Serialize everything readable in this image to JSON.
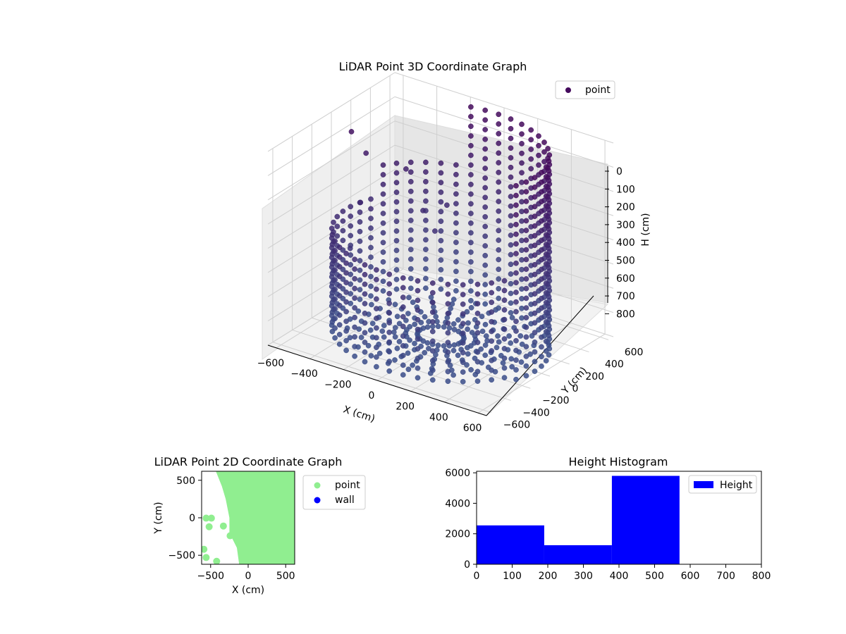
{
  "chart_data": [
    {
      "type": "scatter",
      "projection": "3d",
      "title": "LiDAR Point 3D Coordinate Graph",
      "xlabel": "X (cm)",
      "ylabel": "Y (cm)",
      "zlabel": "H (cm)",
      "xlim": [
        -650,
        650
      ],
      "ylim": [
        -650,
        650
      ],
      "zlim": [
        800,
        0
      ],
      "x_ticks": [
        "−600",
        "−400",
        "−200",
        "0",
        "200",
        "400",
        "600"
      ],
      "y_ticks": [
        "−600",
        "−400",
        "−200",
        "0",
        "200",
        "400",
        "600"
      ],
      "z_ticks": [
        "0",
        "100",
        "200",
        "300",
        "400",
        "500",
        "600",
        "700",
        "800"
      ],
      "legend": {
        "labels": [
          "point"
        ],
        "location": "upper right"
      },
      "colormap": "viridis (dark purple to blue by height)",
      "colors": {
        "low": "#3b4f8a",
        "high": "#440a5c"
      },
      "grid": true,
      "series": [
        {
          "name": "point",
          "shape": "cylindrical wall, roughly circular with radius about 550 cm, height 0 to 800 cm, sampled every ~10° of azimuth, plus a dense floor area and scattered outlier points on the left",
          "wall_points_cylindrical": [
            {
              "angle_deg": 0,
              "radius_cm": 560,
              "h_top": 0,
              "h_bottom": 800
            },
            {
              "angle_deg": 30,
              "radius_cm": 560,
              "h_top": 0,
              "h_bottom": 800
            },
            {
              "angle_deg": 60,
              "radius_cm": 560,
              "h_top": 0,
              "h_bottom": 800
            },
            {
              "angle_deg": 90,
              "radius_cm": 560,
              "h_top": 0,
              "h_bottom": 800
            },
            {
              "angle_deg": 120,
              "radius_cm": 560,
              "h_top": 100,
              "h_bottom": 800
            },
            {
              "angle_deg": 150,
              "radius_cm": 560,
              "h_top": 300,
              "h_bottom": 800
            },
            {
              "angle_deg": 180,
              "radius_cm": 560,
              "h_top": 380,
              "h_bottom": 800
            },
            {
              "angle_deg": 210,
              "radius_cm": 560,
              "h_top": 380,
              "h_bottom": 800
            },
            {
              "angle_deg": 240,
              "radius_cm": 560,
              "h_top": 380,
              "h_bottom": 800
            },
            {
              "angle_deg": 270,
              "radius_cm": 560,
              "h_top": 380,
              "h_bottom": 800
            },
            {
              "angle_deg": 300,
              "radius_cm": 560,
              "h_top": 380,
              "h_bottom": 800
            },
            {
              "angle_deg": 330,
              "radius_cm": 560,
              "h_top": 300,
              "h_bottom": 800
            }
          ],
          "outliers": [
            {
              "x": -600,
              "y": 120,
              "h": 100
            },
            {
              "x": -560,
              "y": 200,
              "h": 200
            },
            {
              "x": -480,
              "y": -100,
              "h": 500
            },
            {
              "x": -500,
              "y": 40,
              "h": 350
            },
            {
              "x": -380,
              "y": 300,
              "h": 250
            },
            {
              "x": -250,
              "y": 250,
              "h": 380
            },
            {
              "x": -160,
              "y": 340,
              "h": 360
            },
            {
              "x": -150,
              "y": 200,
              "h": 430
            }
          ]
        }
      ]
    },
    {
      "type": "scatter",
      "title": "LiDAR Point 2D Coordinate Graph",
      "xlabel": "X (cm)",
      "ylabel": "Y (cm)",
      "xlim": [
        -620,
        620
      ],
      "ylim": [
        -620,
        620
      ],
      "x_ticks": [
        "−500",
        "0",
        "500"
      ],
      "y_ticks": [
        "500",
        "0",
        "−500"
      ],
      "legend": {
        "labels": [
          "point",
          "wall"
        ],
        "location": "outside right"
      },
      "series": [
        {
          "name": "point",
          "color": "#90ee90",
          "region_boundary": [
            {
              "x": -430,
              "y": 620
            },
            {
              "x": 620,
              "y": 620
            },
            {
              "x": 620,
              "y": -620
            },
            {
              "x": -120,
              "y": -620
            },
            {
              "x": -150,
              "y": -400
            },
            {
              "x": -250,
              "y": -200
            },
            {
              "x": -250,
              "y": 0
            },
            {
              "x": -300,
              "y": 250
            },
            {
              "x": -350,
              "y": 420
            },
            {
              "x": -430,
              "y": 620
            }
          ],
          "isolated_points": [
            {
              "x": -560,
              "y": -5
            },
            {
              "x": -490,
              "y": -5
            },
            {
              "x": -520,
              "y": -120
            },
            {
              "x": -330,
              "y": -110
            },
            {
              "x": -240,
              "y": -240
            },
            {
              "x": -590,
              "y": -420
            },
            {
              "x": -560,
              "y": -530
            },
            {
              "x": -420,
              "y": -580
            }
          ]
        },
        {
          "name": "wall",
          "color": "#0000ff",
          "values": []
        }
      ]
    },
    {
      "type": "bar",
      "subtype": "histogram",
      "title": "Height Histogram",
      "xlabel": "",
      "ylabel": "",
      "xlim": [
        0,
        800
      ],
      "ylim": [
        0,
        6100
      ],
      "x_ticks": [
        "0",
        "100",
        "200",
        "300",
        "400",
        "500",
        "600",
        "700",
        "800"
      ],
      "y_ticks": [
        "0",
        "2000",
        "4000",
        "6000"
      ],
      "legend": {
        "labels": [
          "Height"
        ],
        "location": "upper right"
      },
      "color": "#0000ff",
      "bins": [
        {
          "start": 0,
          "end": 190,
          "count": 2550
        },
        {
          "start": 190,
          "end": 380,
          "count": 1250
        },
        {
          "start": 380,
          "end": 570,
          "count": 5800
        }
      ]
    }
  ]
}
